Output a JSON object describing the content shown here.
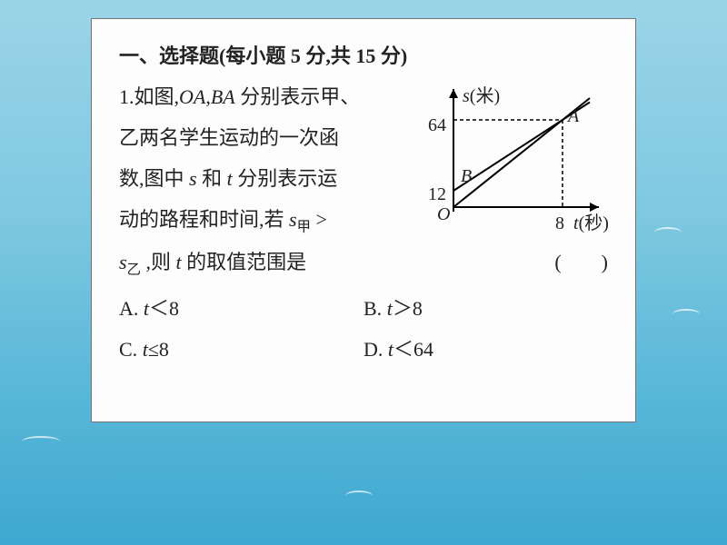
{
  "heading": "一、选择题(每小题 5 分,共 15 分)",
  "question": {
    "num": "1.",
    "lines": [
      "如图,OA,BA 分别表示甲、",
      "乙两名学生运动的一次函",
      "数,图中 s 和 t 分别表示运",
      "动的路程和时间,若 s甲 >",
      "s乙 ,则 t 的取值范围是"
    ],
    "paren": "(　　)"
  },
  "options": {
    "A": "t＜8",
    "B": "t＞8",
    "C": "t≤8",
    "D": "t＜64"
  },
  "figure": {
    "y_axis_label": "s(米)",
    "x_axis_label": "t(秒)",
    "origin_label": "O",
    "point_A_label": "A",
    "point_B_label": "B",
    "y_tick_64": "64",
    "y_tick_12": "12",
    "x_tick_8": "8",
    "axis_color": "#000000",
    "line_color": "#000000",
    "dash_color": "#000000",
    "x_axis_range": [
      0,
      10.5
    ],
    "y_axis_range": [
      0,
      80
    ],
    "line_OA": {
      "from": [
        0,
        0
      ],
      "to": [
        10,
        80
      ]
    },
    "line_BA": {
      "from": [
        0,
        12
      ],
      "to": [
        10,
        77
      ]
    },
    "point_A": [
      8,
      64
    ],
    "point_B": [
      0,
      12
    ],
    "line_width": 2
  },
  "colors": {
    "card_bg": "#fdfdfd",
    "text": "#222222"
  }
}
